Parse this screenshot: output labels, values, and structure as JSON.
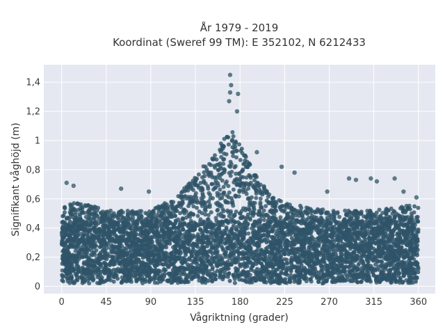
{
  "chart_data": {
    "type": "scatter",
    "title_lines": [
      "År 1979 - 2019",
      "Koordinat (Sweref 99 TM): E 352102, N 6212433"
    ],
    "xlabel": "Vågriktning (grader)",
    "ylabel": "Signifikant våghöjd (m)",
    "xlim": [
      -18,
      377
    ],
    "ylim": [
      -0.05,
      1.52
    ],
    "x_ticks": [
      0,
      45,
      90,
      135,
      180,
      225,
      270,
      315,
      360
    ],
    "y_ticks": [
      0,
      0.2,
      0.4,
      0.6,
      0.8,
      1.0,
      1.2,
      1.4
    ],
    "y_tick_labels": [
      "0",
      "0,2",
      "0,4",
      "0,6",
      "0,8",
      "1",
      "1,2",
      "1,4"
    ],
    "grid": true,
    "marker_color": "#2f5468",
    "background_color": "#e5e8f0",
    "envelope": {
      "direction": [
        0,
        30,
        45,
        90,
        120,
        135,
        150,
        160,
        170,
        180,
        195,
        210,
        225,
        270,
        315,
        360
      ],
      "typical_max_height": [
        0.55,
        0.55,
        0.5,
        0.5,
        0.62,
        0.75,
        0.85,
        0.95,
        1.1,
        0.95,
        0.75,
        0.62,
        0.55,
        0.5,
        0.5,
        0.55
      ]
    },
    "outliers": [
      {
        "x": 170,
        "y": 1.45
      },
      {
        "x": 171,
        "y": 1.38
      },
      {
        "x": 170,
        "y": 1.33
      },
      {
        "x": 178,
        "y": 1.32
      },
      {
        "x": 169,
        "y": 1.27
      },
      {
        "x": 177,
        "y": 1.2
      },
      {
        "x": 5,
        "y": 0.71
      },
      {
        "x": 12,
        "y": 0.69
      },
      {
        "x": 60,
        "y": 0.67
      },
      {
        "x": 88,
        "y": 0.65
      },
      {
        "x": 222,
        "y": 0.82
      },
      {
        "x": 235,
        "y": 0.78
      },
      {
        "x": 268,
        "y": 0.65
      },
      {
        "x": 290,
        "y": 0.74
      },
      {
        "x": 297,
        "y": 0.73
      },
      {
        "x": 312,
        "y": 0.74
      },
      {
        "x": 318,
        "y": 0.72
      },
      {
        "x": 336,
        "y": 0.74
      },
      {
        "x": 345,
        "y": 0.65
      },
      {
        "x": 358,
        "y": 0.61
      },
      {
        "x": 197,
        "y": 0.92
      }
    ]
  }
}
